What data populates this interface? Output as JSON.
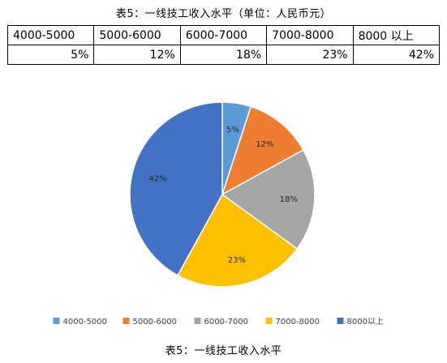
{
  "table": {
    "title": "表5：一线技工收入水平（单位：人民币元）",
    "headers": [
      "4000-5000",
      "5000-6000",
      "6000-7000",
      "7000-8000",
      "8000 以上"
    ],
    "values": [
      "5%",
      "12%",
      "18%",
      "23%",
      "42%"
    ]
  },
  "chart_data": {
    "type": "pie",
    "categories": [
      "4000-5000",
      "5000-6000",
      "6000-7000",
      "7000-8000",
      "8000以上"
    ],
    "values": [
      5,
      12,
      18,
      23,
      42
    ],
    "labels": [
      "5%",
      "12%",
      "18%",
      "23%",
      "42%"
    ],
    "colors": [
      "#5B9BD5",
      "#ED7D31",
      "#A5A5A5",
      "#FFC000",
      "#4472C4"
    ],
    "legend_position": "bottom"
  },
  "caption": "表5：一线技工收入水平"
}
